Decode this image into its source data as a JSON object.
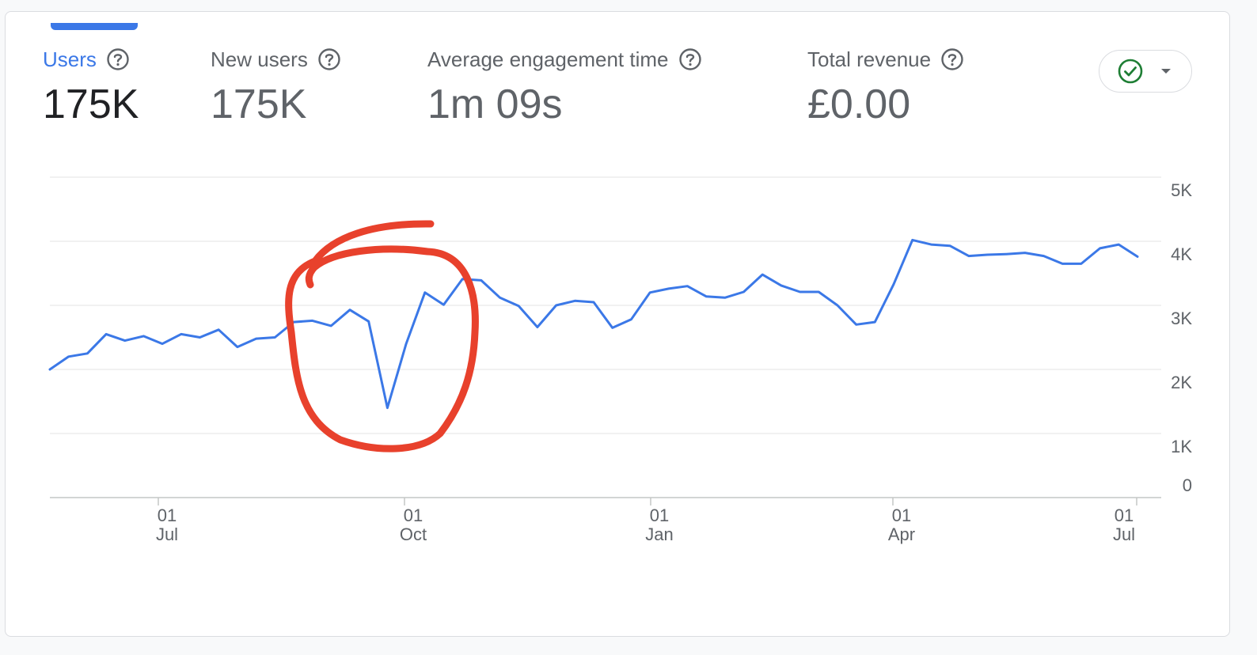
{
  "metrics": [
    {
      "label": "Users",
      "value": "175K",
      "active": true
    },
    {
      "label": "New users",
      "value": "175K",
      "active": false
    },
    {
      "label": "Average engagement time",
      "value": "1m 09s",
      "active": false
    },
    {
      "label": "Total revenue",
      "value": "£0.00",
      "active": false
    }
  ],
  "status_pill": {
    "icon": "check-circle-icon",
    "dropdown_icon": "caret-down-icon"
  },
  "colors": {
    "line": "#3b78e7",
    "annotation": "#e8412c",
    "active_label": "#3b78e7",
    "check": "#1e7e34"
  },
  "annotation": {
    "shape": "hand-drawn-circle",
    "color": "#e8412c",
    "around": "dip around late September"
  },
  "chart_data": {
    "type": "line",
    "x_tick_labels": [
      {
        "day": "01",
        "month": "Jul"
      },
      {
        "day": "01",
        "month": "Oct"
      },
      {
        "day": "01",
        "month": "Jan"
      },
      {
        "day": "01",
        "month": "Apr"
      },
      {
        "day": "01",
        "month": "Jul"
      }
    ],
    "y_tick_labels": [
      "0",
      "1K",
      "2K",
      "3K",
      "4K",
      "5K"
    ],
    "ylim": [
      0,
      5000
    ],
    "grid": true,
    "y_axis_side": "right",
    "series": [
      {
        "values": [
          2000,
          2200,
          2250,
          2550,
          2450,
          2520,
          2400,
          2550,
          2500,
          2620,
          2350,
          2480,
          2500,
          2740,
          2760,
          2680,
          2930,
          2750,
          1400,
          2400,
          3200,
          3010,
          3410,
          3390,
          3120,
          2990,
          2660,
          3000,
          3070,
          3050,
          2650,
          2780,
          3200,
          3260,
          3300,
          3140,
          3120,
          3210,
          3480,
          3310,
          3210,
          3210,
          3000,
          2700,
          2740,
          3330,
          4020,
          3950,
          3930,
          3770,
          3790,
          3800,
          3820,
          3770,
          3650,
          3650,
          3890,
          3950,
          3760
        ]
      }
    ]
  }
}
